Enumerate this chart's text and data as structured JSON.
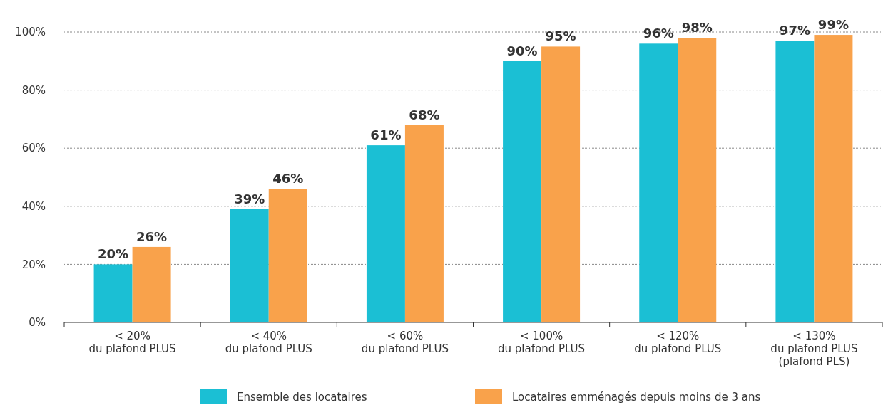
{
  "chart_data": {
    "type": "bar",
    "categories": [
      "< 20%\ndu plafond PLUS",
      "< 40%\ndu plafond PLUS",
      "< 60%\ndu plafond PLUS",
      "< 100%\ndu plafond PLUS",
      "< 120%\ndu plafond PLUS",
      "< 130%\ndu plafond PLUS\n(plafond PLS)"
    ],
    "series": [
      {
        "name": "Ensemble des locataires",
        "color": "#1bbfd4",
        "values": [
          20,
          39,
          61,
          90,
          96,
          97
        ]
      },
      {
        "name": "Locataires emménagés depuis moins de 3 ans",
        "color": "#f9a24b",
        "values": [
          26,
          46,
          68,
          95,
          98,
          99
        ]
      }
    ],
    "ylim": [
      0,
      100
    ],
    "yticks": [
      {
        "value": 0,
        "label": "0%"
      },
      {
        "value": 20,
        "label": "20%"
      },
      {
        "value": 40,
        "label": "40%"
      },
      {
        "value": 60,
        "label": "60%"
      },
      {
        "value": 80,
        "label": "80%"
      },
      {
        "value": 100,
        "label": "100%"
      }
    ],
    "value_labels": [
      [
        "20%",
        "39%",
        "61%",
        "90%",
        "96%",
        "97%"
      ],
      [
        "26%",
        "46%",
        "68%",
        "95%",
        "98%",
        "99%"
      ]
    ],
    "grid": "y",
    "legend": "bottom"
  }
}
